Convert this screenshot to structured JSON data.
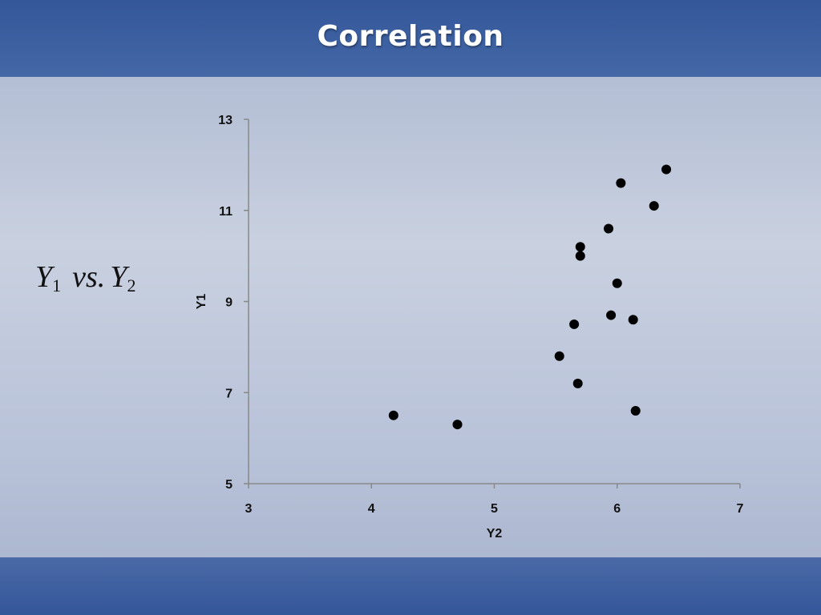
{
  "slide": {
    "title": "Correlation",
    "side_label": {
      "var1": "Y",
      "sub1": "1",
      "middle": "vs.",
      "var2": "Y",
      "sub2": "2"
    }
  },
  "colors": {
    "title_bar": "#3a5c9e",
    "point": "#000000",
    "axis": "#888888"
  },
  "chart_data": {
    "type": "scatter",
    "xlabel": "Y2",
    "ylabel": "Y1",
    "xlim": [
      3,
      7
    ],
    "ylim": [
      5,
      13
    ],
    "x_ticks": [
      3,
      4,
      5,
      6,
      7
    ],
    "y_ticks": [
      5,
      7,
      9,
      11,
      13
    ],
    "grid": false,
    "legend": "none",
    "points": [
      {
        "x": 4.18,
        "y": 6.5
      },
      {
        "x": 4.7,
        "y": 6.3
      },
      {
        "x": 5.53,
        "y": 7.8
      },
      {
        "x": 5.65,
        "y": 8.5
      },
      {
        "x": 5.68,
        "y": 7.2
      },
      {
        "x": 5.7,
        "y": 10.2
      },
      {
        "x": 5.7,
        "y": 10.0
      },
      {
        "x": 5.93,
        "y": 10.6
      },
      {
        "x": 5.95,
        "y": 8.7
      },
      {
        "x": 6.0,
        "y": 9.4
      },
      {
        "x": 6.03,
        "y": 11.6
      },
      {
        "x": 6.13,
        "y": 8.6
      },
      {
        "x": 6.15,
        "y": 6.6
      },
      {
        "x": 6.3,
        "y": 11.1
      },
      {
        "x": 6.4,
        "y": 11.9
      }
    ]
  }
}
